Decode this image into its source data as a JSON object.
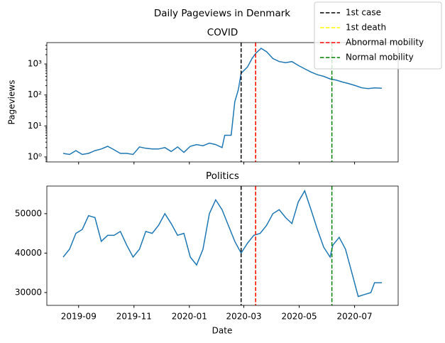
{
  "title": "Daily Pageviews in Denmark",
  "x_label": "Date",
  "legend_loc": "upper right",
  "events": [
    {
      "name": "1st case",
      "x": "2020-02-27",
      "color": "#000000"
    },
    {
      "name": "1st death",
      "x": "2020-03-14",
      "color": "#ffff00"
    },
    {
      "name": "Abnormal mobility",
      "x": "2020-03-14",
      "color": "#ff0000"
    },
    {
      "name": "Normal mobility",
      "x": "2020-06-06",
      "color": "#008000"
    }
  ],
  "chart_data": [
    {
      "type": "line",
      "title": "COVID",
      "y_label": "Pageviews",
      "log_y": true,
      "xlim": [
        "2019-07-28",
        "2020-08-18"
      ],
      "xticks": [
        {
          "value": "2019-09-01",
          "label": "2019-09"
        },
        {
          "value": "2019-11-01",
          "label": "2019-11"
        },
        {
          "value": "2020-01-01",
          "label": "2020-01"
        },
        {
          "value": "2020-03-01",
          "label": "2020-03"
        },
        {
          "value": "2020-05-01",
          "label": "2020-05"
        },
        {
          "value": "2020-07-01",
          "label": "2020-07"
        }
      ],
      "ylim": [
        0.69,
        4900
      ],
      "yticks": [
        {
          "value": 1,
          "label": "10⁰"
        },
        {
          "value": 10,
          "label": "10¹"
        },
        {
          "value": 100,
          "label": "10²"
        },
        {
          "value": 1000,
          "label": "10³"
        }
      ],
      "x": [
        "2019-08-15",
        "2019-08-22",
        "2019-08-29",
        "2019-09-05",
        "2019-09-12",
        "2019-09-19",
        "2019-09-26",
        "2019-10-03",
        "2019-10-10",
        "2019-10-17",
        "2019-10-24",
        "2019-10-31",
        "2019-11-07",
        "2019-11-14",
        "2019-11-21",
        "2019-11-28",
        "2019-12-05",
        "2019-12-12",
        "2019-12-19",
        "2019-12-26",
        "2020-01-02",
        "2020-01-09",
        "2020-01-16",
        "2020-01-23",
        "2020-01-30",
        "2020-02-06",
        "2020-02-09",
        "2020-02-16",
        "2020-02-20",
        "2020-02-24",
        "2020-02-27",
        "2020-03-05",
        "2020-03-10",
        "2020-03-14",
        "2020-03-20",
        "2020-03-26",
        "2020-04-02",
        "2020-04-09",
        "2020-04-16",
        "2020-04-23",
        "2020-04-30",
        "2020-05-07",
        "2020-05-14",
        "2020-05-21",
        "2020-05-28",
        "2020-06-04",
        "2020-06-11",
        "2020-06-18",
        "2020-06-25",
        "2020-07-02",
        "2020-07-09",
        "2020-07-16",
        "2020-07-23",
        "2020-07-31"
      ],
      "series": [
        {
          "name": "COVID",
          "color": "#1f77b4",
          "values": [
            1.3,
            1.2,
            1.6,
            1.2,
            1.3,
            1.6,
            1.8,
            2.2,
            1.7,
            1.3,
            1.3,
            1.2,
            2.1,
            1.9,
            1.8,
            1.8,
            2.0,
            1.5,
            2.1,
            1.4,
            2.2,
            2.5,
            2.3,
            2.8,
            2.5,
            2.0,
            5,
            5,
            60,
            150,
            500,
            800,
            1500,
            2200,
            3200,
            2500,
            1500,
            1200,
            1100,
            1200,
            900,
            700,
            550,
            450,
            400,
            330,
            300,
            260,
            230,
            200,
            170,
            160,
            170,
            165
          ]
        }
      ]
    },
    {
      "type": "line",
      "title": "Politics",
      "xlim": [
        "2019-07-28",
        "2020-08-18"
      ],
      "xticks": [
        {
          "value": "2019-09-01",
          "label": "2019-09"
        },
        {
          "value": "2019-11-01",
          "label": "2019-11"
        },
        {
          "value": "2020-01-01",
          "label": "2020-01"
        },
        {
          "value": "2020-03-01",
          "label": "2020-03"
        },
        {
          "value": "2020-05-01",
          "label": "2020-05"
        },
        {
          "value": "2020-07-01",
          "label": "2020-07"
        }
      ],
      "ylim": [
        26750,
        57000
      ],
      "yticks": [
        30000,
        40000,
        50000
      ],
      "x": [
        "2019-08-15",
        "2019-08-22",
        "2019-08-29",
        "2019-09-05",
        "2019-09-12",
        "2019-09-19",
        "2019-09-26",
        "2019-10-03",
        "2019-10-10",
        "2019-10-17",
        "2019-10-24",
        "2019-10-31",
        "2019-11-07",
        "2019-11-14",
        "2019-11-21",
        "2019-11-28",
        "2019-12-05",
        "2019-12-12",
        "2019-12-19",
        "2019-12-26",
        "2020-01-02",
        "2020-01-09",
        "2020-01-16",
        "2020-01-23",
        "2020-01-30",
        "2020-02-06",
        "2020-02-13",
        "2020-02-20",
        "2020-02-27",
        "2020-03-05",
        "2020-03-12",
        "2020-03-19",
        "2020-03-26",
        "2020-04-02",
        "2020-04-09",
        "2020-04-16",
        "2020-04-23",
        "2020-04-30",
        "2020-05-07",
        "2020-05-14",
        "2020-05-21",
        "2020-05-28",
        "2020-06-04",
        "2020-06-07",
        "2020-06-14",
        "2020-06-21",
        "2020-06-28",
        "2020-07-05",
        "2020-07-12",
        "2020-07-19",
        "2020-07-23",
        "2020-07-31"
      ],
      "series": [
        {
          "name": "Politics",
          "color": "#1f77b4",
          "values": [
            39000,
            41000,
            45000,
            46000,
            49500,
            49000,
            43000,
            44500,
            44500,
            45500,
            42000,
            39000,
            41000,
            45500,
            45000,
            47000,
            50000,
            47500,
            44500,
            45000,
            39000,
            37000,
            41000,
            50000,
            53500,
            51000,
            47000,
            43000,
            40000,
            42500,
            44500,
            45000,
            47000,
            50000,
            51000,
            49000,
            47500,
            53000,
            55800,
            51000,
            46000,
            41500,
            39000,
            42000,
            44000,
            41000,
            35000,
            29000,
            29500,
            30000,
            32500,
            32500
          ]
        }
      ]
    }
  ]
}
